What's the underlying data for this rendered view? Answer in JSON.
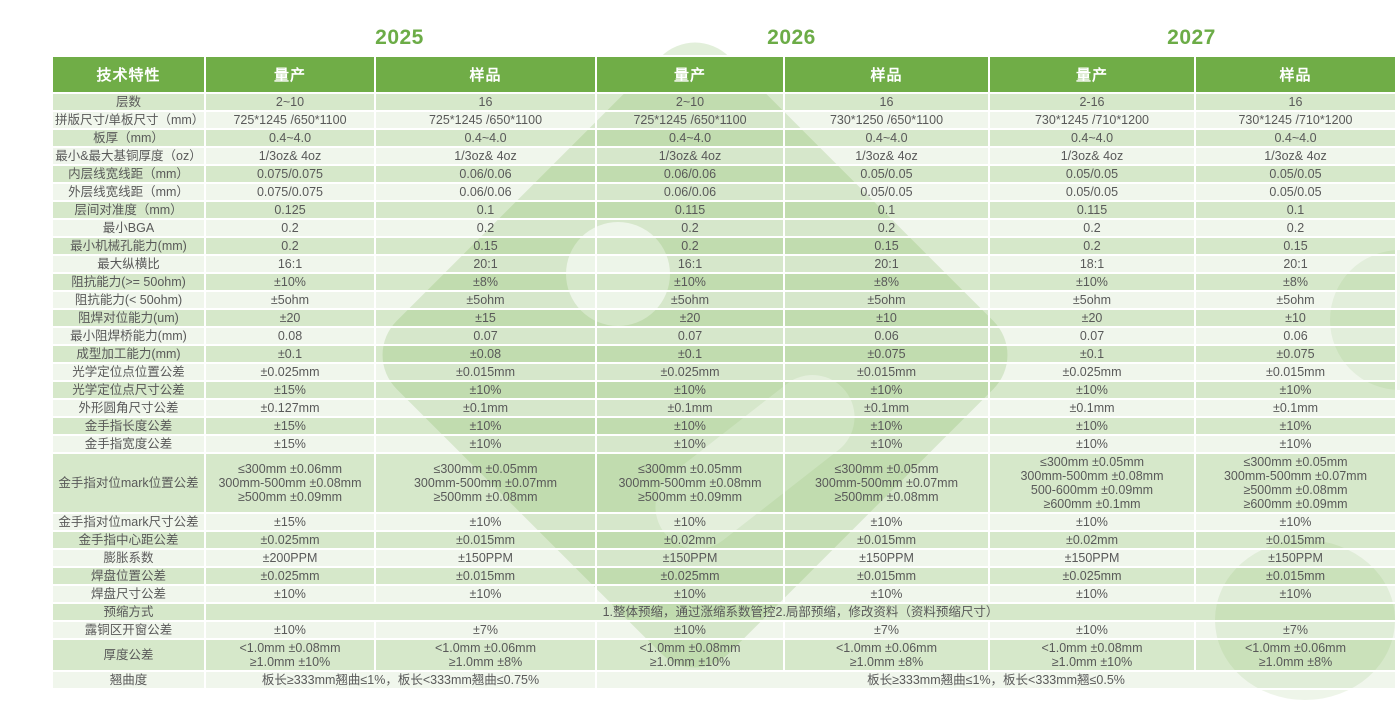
{
  "title_years": [
    "2025",
    "2026",
    "2027"
  ],
  "header": {
    "feature": "技术特性",
    "columns": [
      "量产",
      "样品",
      "量产",
      "样品",
      "量产",
      "样品"
    ]
  },
  "colors": {
    "header_green": "#70AD47",
    "year_green": "#6CAC47",
    "row_dark": "#D7E3CA",
    "row_light": "#EFF3EA",
    "text_gray": "#595959",
    "background": "#FFFFFF"
  },
  "rows": [
    {
      "label": "层数",
      "cells": [
        "2~10",
        "16",
        "2~10",
        "16",
        "2-16",
        "16"
      ]
    },
    {
      "label": "拼版尺寸/单板尺寸（mm）",
      "cells": [
        "725*1245 /650*1100",
        "725*1245 /650*1100",
        "725*1245 /650*1100",
        "730*1250 /650*1100",
        "730*1245 /710*1200",
        "730*1245 /710*1200"
      ]
    },
    {
      "label": "板厚（mm）",
      "cells": [
        "0.4~4.0",
        "0.4~4.0",
        "0.4~4.0",
        "0.4~4.0",
        "0.4~4.0",
        "0.4~4.0"
      ]
    },
    {
      "label": "最小&最大基铜厚度（oz）",
      "cells": [
        "1/3oz& 4oz",
        "1/3oz& 4oz",
        "1/3oz& 4oz",
        "1/3oz& 4oz",
        "1/3oz& 4oz",
        "1/3oz& 4oz"
      ]
    },
    {
      "label": "内层线宽线距（mm）",
      "cells": [
        "0.075/0.075",
        "0.06/0.06",
        "0.06/0.06",
        "0.05/0.05",
        "0.05/0.05",
        "0.05/0.05"
      ]
    },
    {
      "label": "外层线宽线距（mm）",
      "cells": [
        "0.075/0.075",
        "0.06/0.06",
        "0.06/0.06",
        "0.05/0.05",
        "0.05/0.05",
        "0.05/0.05"
      ]
    },
    {
      "label": "层间对准度（mm）",
      "cells": [
        "0.125",
        "0.1",
        "0.115",
        "0.1",
        "0.115",
        "0.1"
      ]
    },
    {
      "label": "最小BGA",
      "cells": [
        "0.2",
        "0.2",
        "0.2",
        "0.2",
        "0.2",
        "0.2"
      ]
    },
    {
      "label": "最小机械孔能力(mm)",
      "cells": [
        "0.2",
        "0.15",
        "0.2",
        "0.15",
        "0.2",
        "0.15"
      ]
    },
    {
      "label": "最大纵横比",
      "cells": [
        "16:1",
        "20:1",
        "16:1",
        "20:1",
        "18:1",
        "20:1"
      ]
    },
    {
      "label": "阻抗能力(>= 50ohm)",
      "cells": [
        "±10%",
        "±8%",
        "±10%",
        "±8%",
        "±10%",
        "±8%"
      ]
    },
    {
      "label": "阻抗能力(< 50ohm)",
      "cells": [
        "±5ohm",
        "±5ohm",
        "±5ohm",
        "±5ohm",
        "±5ohm",
        "±5ohm"
      ]
    },
    {
      "label": "阻焊对位能力(um)",
      "cells": [
        "±20",
        "±15",
        "±20",
        "±10",
        "±20",
        "±10"
      ]
    },
    {
      "label": "最小阻焊桥能力(mm)",
      "cells": [
        "0.08",
        "0.07",
        "0.07",
        "0.06",
        "0.07",
        "0.06"
      ]
    },
    {
      "label": "成型加工能力(mm)",
      "cells": [
        "±0.1",
        "±0.08",
        "±0.1",
        "±0.075",
        "±0.1",
        "±0.075"
      ]
    },
    {
      "label": "光学定位点位置公差",
      "cells": [
        "±0.025mm",
        "±0.015mm",
        "±0.025mm",
        "±0.015mm",
        "±0.025mm",
        "±0.015mm"
      ]
    },
    {
      "label": "光学定位点尺寸公差",
      "cells": [
        "±15%",
        "±10%",
        "±10%",
        "±10%",
        "±10%",
        "±10%"
      ]
    },
    {
      "label": "外形圆角尺寸公差",
      "cells": [
        "±0.127mm",
        "±0.1mm",
        "±0.1mm",
        "±0.1mm",
        "±0.1mm",
        "±0.1mm"
      ]
    },
    {
      "label": "金手指长度公差",
      "cells": [
        "±15%",
        "±10%",
        "±10%",
        "±10%",
        "±10%",
        "±10%"
      ]
    },
    {
      "label": "金手指宽度公差",
      "cells": [
        "±15%",
        "±10%",
        "±10%",
        "±10%",
        "±10%",
        "±10%"
      ]
    },
    {
      "label": "金手指对位mark位置公差",
      "cells": [
        "≤300mm  ±0.06mm\n300mm-500mm  ±0.08mm\n≥500mm  ±0.09mm",
        "≤300mm  ±0.05mm\n300mm-500mm  ±0.07mm\n≥500mm  ±0.08mm",
        "≤300mm  ±0.05mm\n300mm-500mm  ±0.08mm\n≥500mm  ±0.09mm",
        "≤300mm  ±0.05mm\n300mm-500mm  ±0.07mm\n≥500mm  ±0.08mm",
        "≤300mm  ±0.05mm\n300mm-500mm  ±0.08mm\n500-600mm  ±0.09mm\n≥600mm  ±0.1mm",
        "≤300mm  ±0.05mm\n300mm-500mm  ±0.07mm\n≥500mm  ±0.08mm\n≥600mm  ±0.09mm"
      ]
    },
    {
      "label": "金手指对位mark尺寸公差",
      "cells": [
        "±15%",
        "±10%",
        "±10%",
        "±10%",
        "±10%",
        "±10%"
      ]
    },
    {
      "label": "金手指中心距公差",
      "cells": [
        "±0.025mm",
        "±0.015mm",
        "±0.02mm",
        "±0.015mm",
        "±0.02mm",
        "±0.015mm"
      ]
    },
    {
      "label": "膨胀系数",
      "cells": [
        "±200PPM",
        "±150PPM",
        "±150PPM",
        "±150PPM",
        "±150PPM",
        "±150PPM"
      ]
    },
    {
      "label": "焊盘位置公差",
      "cells": [
        "±0.025mm",
        "±0.015mm",
        "±0.025mm",
        "±0.015mm",
        "±0.025mm",
        "±0.015mm"
      ]
    },
    {
      "label": "焊盘尺寸公差",
      "cells": [
        "±10%",
        "±10%",
        "±10%",
        "±10%",
        "±10%",
        "±10%"
      ]
    },
    {
      "label": "预缩方式",
      "cells": [
        {
          "text": "1.整体预缩，通过涨缩系数管控2.局部预缩，修改资料（资料预缩尺寸）",
          "span": 6
        }
      ]
    },
    {
      "label": "露铜区开窗公差",
      "cells": [
        "±10%",
        "±7%",
        "±10%",
        "±7%",
        "±10%",
        "±7%"
      ]
    },
    {
      "label": "厚度公差",
      "cells": [
        "<1.0mm  ±0.08mm\n≥1.0mm  ±10%",
        "<1.0mm  ±0.06mm\n≥1.0mm  ±8%",
        "<1.0mm  ±0.08mm\n≥1.0mm  ±10%",
        "<1.0mm  ±0.06mm\n≥1.0mm  ±8%",
        "<1.0mm  ±0.08mm\n≥1.0mm  ±10%",
        "<1.0mm  ±0.06mm\n≥1.0mm  ±8%"
      ]
    },
    {
      "label": "翘曲度",
      "cells": [
        {
          "text": "板长≥333mm翘曲≤1%，板长<333mm翘曲≤0.75%",
          "span": 2
        },
        {
          "text": "板长≥333mm翘曲≤1%，板长<333mm翘≤0.5%",
          "span": 4
        }
      ]
    }
  ]
}
